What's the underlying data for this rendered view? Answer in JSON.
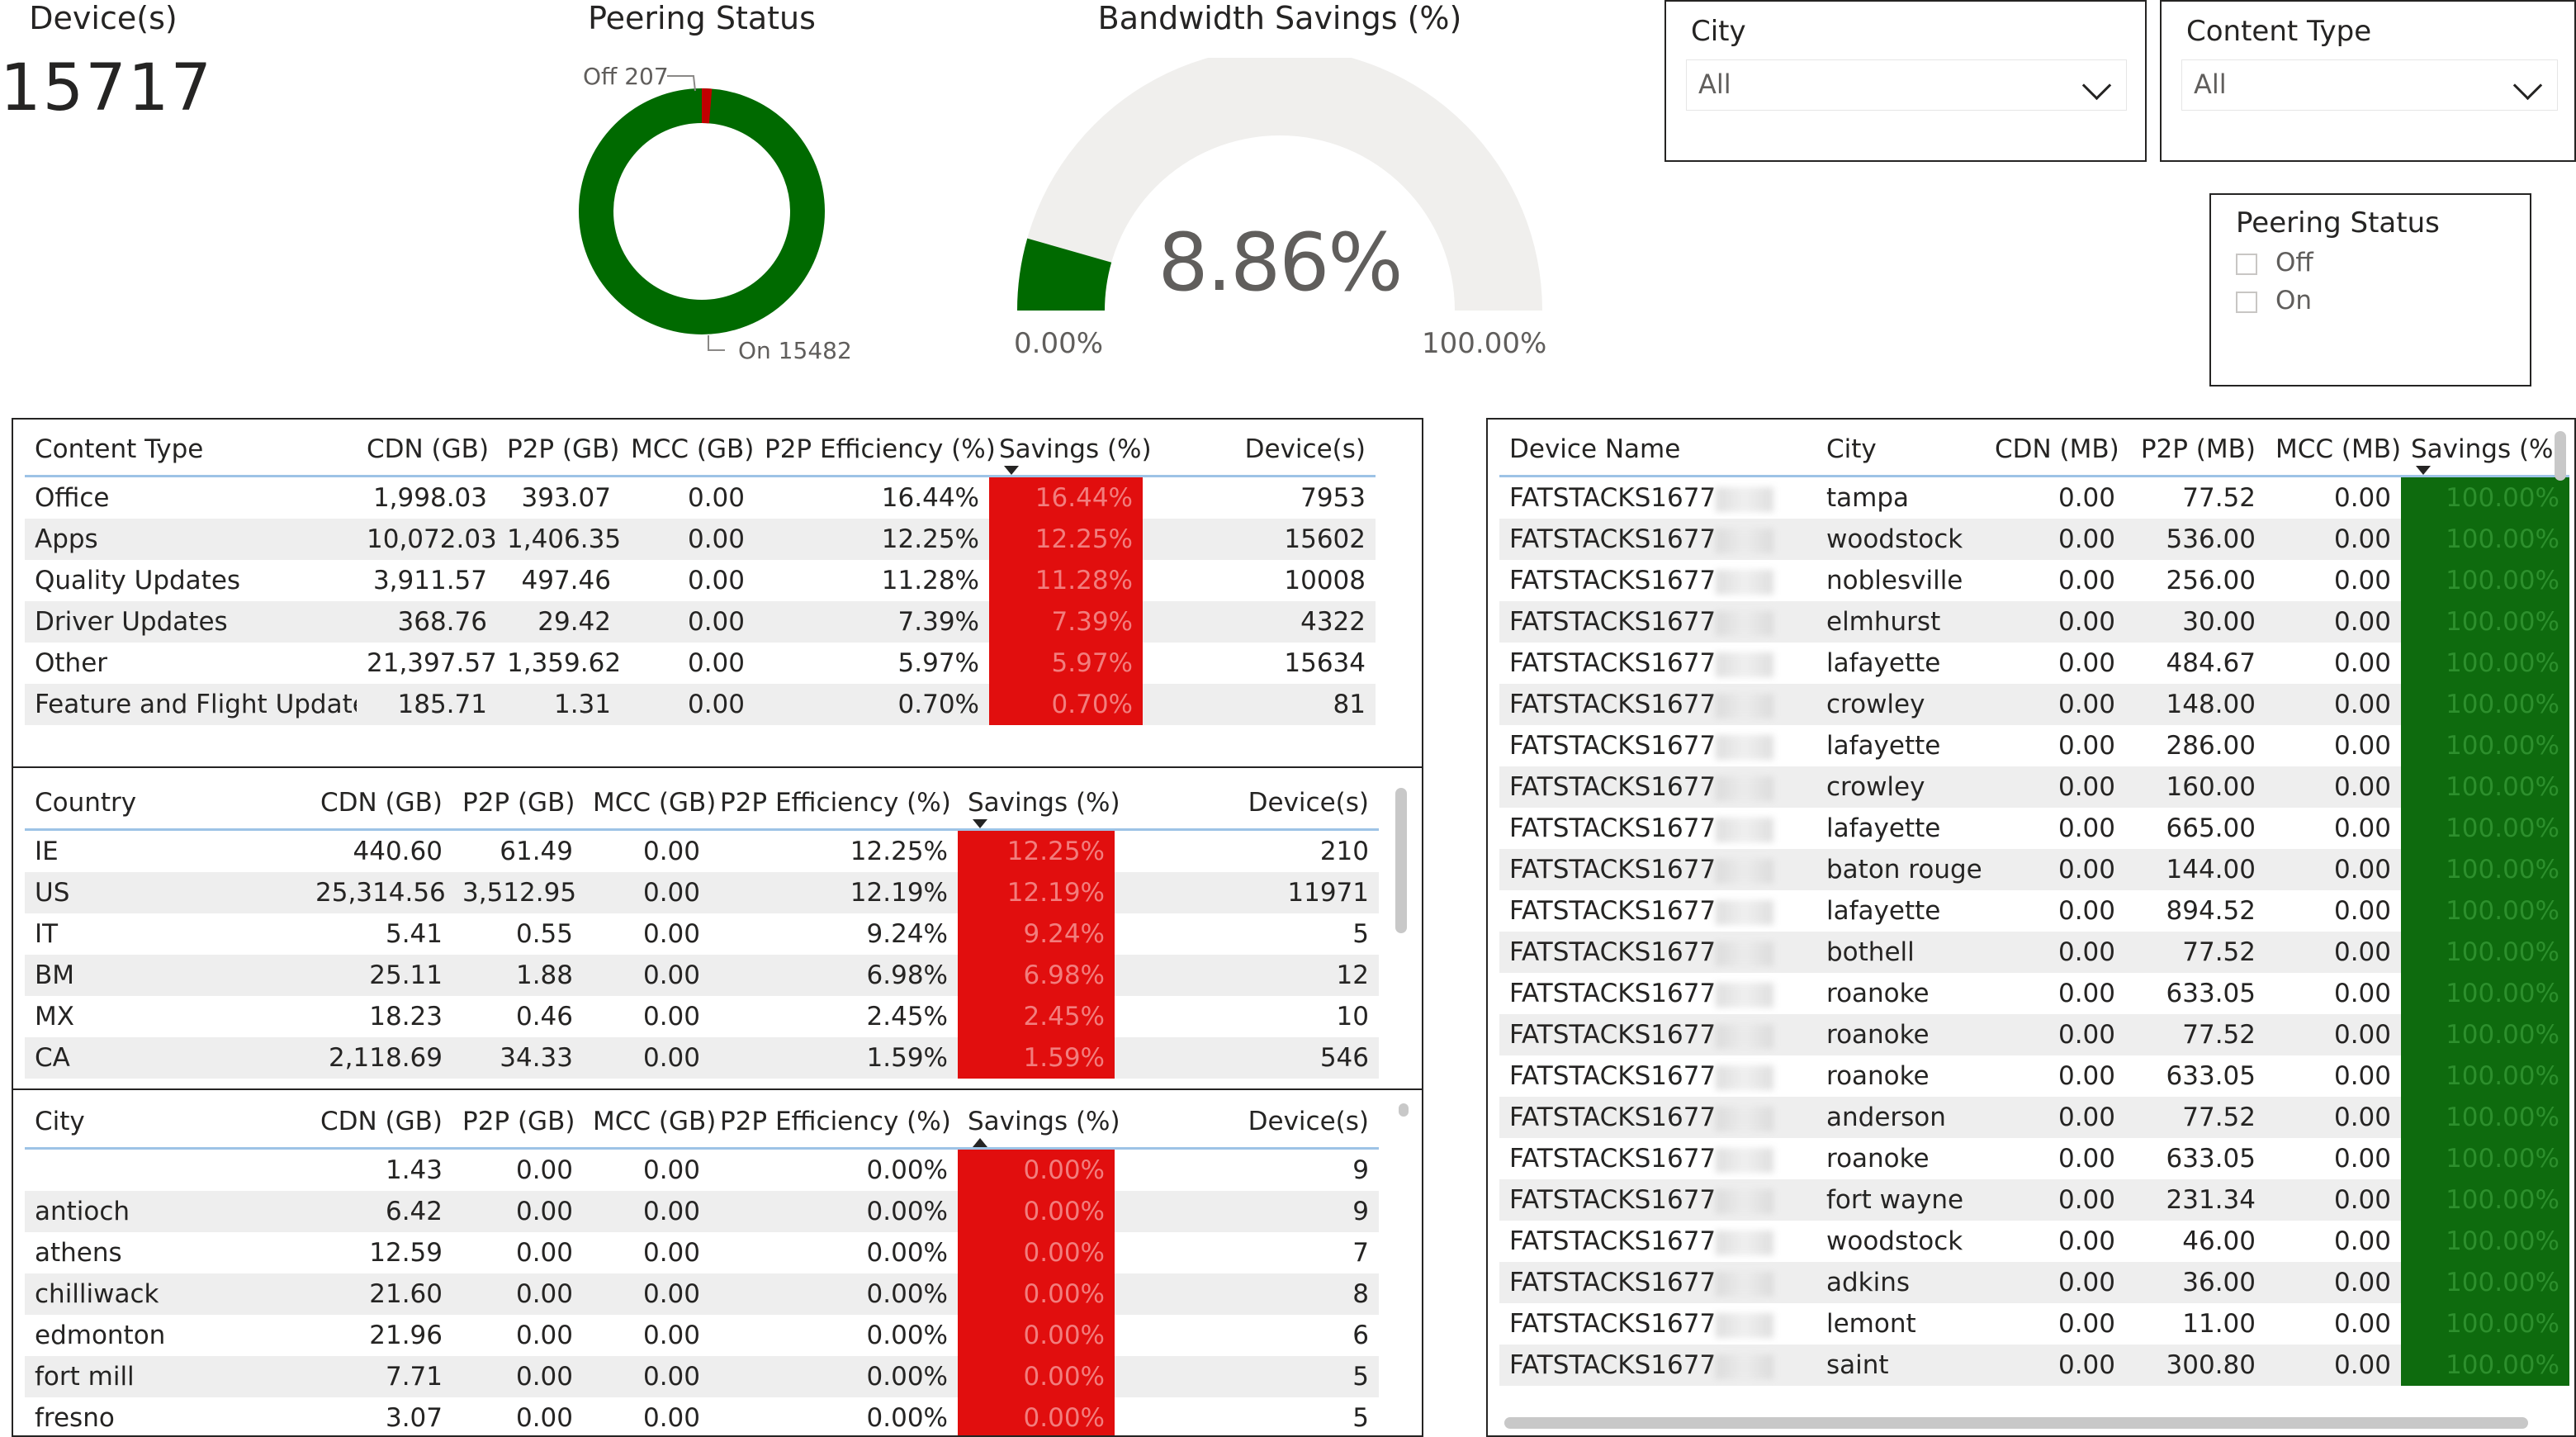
{
  "kpi": {
    "title": "Device(s)",
    "value": "15717"
  },
  "peering_chart": {
    "title": "Peering Status",
    "off_label": "Off 207",
    "on_label": "On 15482",
    "off_color": "#c00000",
    "on_color": "#006a00"
  },
  "gauge": {
    "title": "Bandwidth Savings (%)",
    "value": "8.86%",
    "min_label": "0.00%",
    "max_label": "100.00%",
    "fill_fraction": 0.0886,
    "fill_color": "#006a00",
    "track_color": "#f0efed"
  },
  "slicers": {
    "city": {
      "title": "City",
      "value": "All"
    },
    "content_type": {
      "title": "Content Type",
      "value": "All"
    },
    "peering": {
      "title": "Peering Status",
      "options": [
        "Off",
        "On"
      ]
    }
  },
  "content_table": {
    "headers": [
      "Content Type",
      "CDN (GB)",
      "P2P (GB)",
      "MCC (GB)",
      "P2P Efficiency (%)",
      "Savings (%)",
      "Device(s)"
    ],
    "rows": [
      [
        "Office",
        "1,998.03",
        "393.07",
        "0.00",
        "16.44%",
        "16.44%",
        "7953"
      ],
      [
        "Apps",
        "10,072.03",
        "1,406.35",
        "0.00",
        "12.25%",
        "12.25%",
        "15602"
      ],
      [
        "Quality Updates",
        "3,911.57",
        "497.46",
        "0.00",
        "11.28%",
        "11.28%",
        "10008"
      ],
      [
        "Driver Updates",
        "368.76",
        "29.42",
        "0.00",
        "7.39%",
        "7.39%",
        "4322"
      ],
      [
        "Other",
        "21,397.57",
        "1,359.62",
        "0.00",
        "5.97%",
        "5.97%",
        "15634"
      ],
      [
        "Feature and Flight Updates",
        "185.71",
        "1.31",
        "0.00",
        "0.70%",
        "0.70%",
        "81"
      ]
    ]
  },
  "country_table": {
    "headers": [
      "Country",
      "CDN (GB)",
      "P2P (GB)",
      "MCC (GB)",
      "P2P Efficiency (%)",
      "Savings (%)",
      "Device(s)"
    ],
    "rows": [
      [
        "IE",
        "440.60",
        "61.49",
        "0.00",
        "12.25%",
        "12.25%",
        "210"
      ],
      [
        "US",
        "25,314.56",
        "3,512.95",
        "0.00",
        "12.19%",
        "12.19%",
        "11971"
      ],
      [
        "IT",
        "5.41",
        "0.55",
        "0.00",
        "9.24%",
        "9.24%",
        "5"
      ],
      [
        "BM",
        "25.11",
        "1.88",
        "0.00",
        "6.98%",
        "6.98%",
        "12"
      ],
      [
        "MX",
        "18.23",
        "0.46",
        "0.00",
        "2.45%",
        "2.45%",
        "10"
      ],
      [
        "CA",
        "2,118.69",
        "34.33",
        "0.00",
        "1.59%",
        "1.59%",
        "546"
      ]
    ]
  },
  "city_table": {
    "headers": [
      "City",
      "CDN (GB)",
      "P2P (GB)",
      "MCC (GB)",
      "P2P Efficiency (%)",
      "Savings (%)",
      "Device(s)"
    ],
    "rows": [
      [
        "",
        "1.43",
        "0.00",
        "0.00",
        "0.00%",
        "0.00%",
        "9"
      ],
      [
        "antioch",
        "6.42",
        "0.00",
        "0.00",
        "0.00%",
        "0.00%",
        "9"
      ],
      [
        "athens",
        "12.59",
        "0.00",
        "0.00",
        "0.00%",
        "0.00%",
        "7"
      ],
      [
        "chilliwack",
        "21.60",
        "0.00",
        "0.00",
        "0.00%",
        "0.00%",
        "8"
      ],
      [
        "edmonton",
        "21.96",
        "0.00",
        "0.00",
        "0.00%",
        "0.00%",
        "6"
      ],
      [
        "fort mill",
        "7.71",
        "0.00",
        "0.00",
        "0.00%",
        "0.00%",
        "5"
      ],
      [
        "fresno",
        "3.07",
        "0.00",
        "0.00",
        "0.00%",
        "0.00%",
        "5"
      ]
    ]
  },
  "device_table": {
    "headers": [
      "Device Name",
      "City",
      "CDN (MB)",
      "P2P (MB)",
      "MCC (MB)",
      "Savings (%)"
    ],
    "rows": [
      [
        "FATSTACKS1677",
        "tampa",
        "0.00",
        "77.52",
        "0.00",
        "100.00%"
      ],
      [
        "FATSTACKS1677",
        "woodstock",
        "0.00",
        "536.00",
        "0.00",
        "100.00%"
      ],
      [
        "FATSTACKS1677",
        "noblesville",
        "0.00",
        "256.00",
        "0.00",
        "100.00%"
      ],
      [
        "FATSTACKS1677",
        "elmhurst",
        "0.00",
        "30.00",
        "0.00",
        "100.00%"
      ],
      [
        "FATSTACKS1677",
        "lafayette",
        "0.00",
        "484.67",
        "0.00",
        "100.00%"
      ],
      [
        "FATSTACKS1677",
        "crowley",
        "0.00",
        "148.00",
        "0.00",
        "100.00%"
      ],
      [
        "FATSTACKS1677",
        "lafayette",
        "0.00",
        "286.00",
        "0.00",
        "100.00%"
      ],
      [
        "FATSTACKS1677",
        "crowley",
        "0.00",
        "160.00",
        "0.00",
        "100.00%"
      ],
      [
        "FATSTACKS1677",
        "lafayette",
        "0.00",
        "665.00",
        "0.00",
        "100.00%"
      ],
      [
        "FATSTACKS1677",
        "baton rouge",
        "0.00",
        "144.00",
        "0.00",
        "100.00%"
      ],
      [
        "FATSTACKS1677",
        "lafayette",
        "0.00",
        "894.52",
        "0.00",
        "100.00%"
      ],
      [
        "FATSTACKS1677",
        "bothell",
        "0.00",
        "77.52",
        "0.00",
        "100.00%"
      ],
      [
        "FATSTACKS1677",
        "roanoke",
        "0.00",
        "633.05",
        "0.00",
        "100.00%"
      ],
      [
        "FATSTACKS1677",
        "roanoke",
        "0.00",
        "77.52",
        "0.00",
        "100.00%"
      ],
      [
        "FATSTACKS1677",
        "roanoke",
        "0.00",
        "633.05",
        "0.00",
        "100.00%"
      ],
      [
        "FATSTACKS1677",
        "anderson",
        "0.00",
        "77.52",
        "0.00",
        "100.00%"
      ],
      [
        "FATSTACKS1677",
        "roanoke",
        "0.00",
        "633.05",
        "0.00",
        "100.00%"
      ],
      [
        "FATSTACKS1677",
        "fort wayne",
        "0.00",
        "231.34",
        "0.00",
        "100.00%"
      ],
      [
        "FATSTACKS1677",
        "woodstock",
        "0.00",
        "46.00",
        "0.00",
        "100.00%"
      ],
      [
        "FATSTACKS1677",
        "adkins",
        "0.00",
        "36.00",
        "0.00",
        "100.00%"
      ],
      [
        "FATSTACKS1677",
        "lemont",
        "0.00",
        "11.00",
        "0.00",
        "100.00%"
      ],
      [
        "FATSTACKS1677",
        "saint",
        "0.00",
        "300.80",
        "0.00",
        "100.00%"
      ]
    ]
  }
}
